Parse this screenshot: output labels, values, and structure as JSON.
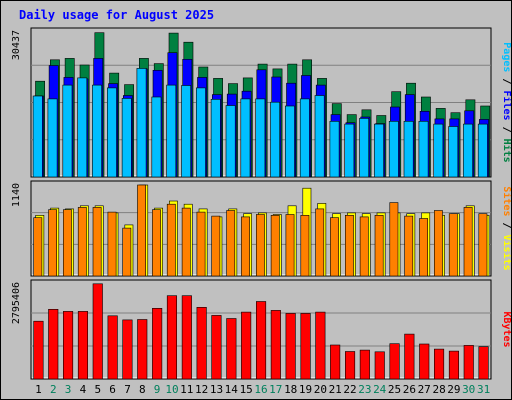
{
  "chart_data": {
    "type": "bar",
    "title": "Daily usage for August 2025",
    "x": [
      "1",
      "2",
      "3",
      "4",
      "5",
      "6",
      "7",
      "8",
      "9",
      "10",
      "11",
      "12",
      "13",
      "14",
      "15",
      "16",
      "17",
      "18",
      "19",
      "20",
      "21",
      "22",
      "23",
      "24",
      "25",
      "26",
      "27",
      "28",
      "29",
      "30",
      "31"
    ],
    "weekend_days": [
      "2",
      "3",
      "9",
      "10",
      "16",
      "17",
      "23",
      "24",
      "30",
      "31"
    ],
    "panels": [
      {
        "id": "hits_files_pages",
        "max_label": "30437",
        "ylim": [
          0,
          30437
        ],
        "series": [
          {
            "name": "Hits",
            "color": "#008040",
            "values": [
              20100,
              24600,
              24900,
              23500,
              30300,
              21800,
              19400,
              24900,
              23800,
              30200,
              28300,
              23100,
              20700,
              19600,
              20800,
              23700,
              22700,
              23700,
              24600,
              20700,
              15400,
              13100,
              14100,
              12900,
              17900,
              19700,
              16800,
              14400,
              13500,
              16200,
              14900
            ]
          },
          {
            "name": "Files",
            "color": "#0000ff",
            "values": [
              17000,
              23400,
              20900,
              20600,
              24900,
              19600,
              17100,
              22700,
              22400,
              26100,
              24700,
              20900,
              17300,
              17400,
              18000,
              22500,
              21000,
              19700,
              21300,
              19300,
              13100,
              11400,
              12600,
              11200,
              14700,
              17300,
              13800,
              12200,
              12200,
              13900,
              12100
            ]
          },
          {
            "name": "Pages",
            "color": "#00bfff",
            "values": [
              17000,
              16400,
              19300,
              20800,
              19300,
              18700,
              16500,
              22800,
              16800,
              19300,
              19200,
              18700,
              16300,
              15000,
              16400,
              16400,
              15700,
              14900,
              16400,
              17100,
              11700,
              11100,
              12300,
              11100,
              11700,
              11700,
              11700,
              11100,
              10600,
              11100,
              11100
            ]
          }
        ]
      },
      {
        "id": "visits_sites",
        "max_label": "1140",
        "ylim": [
          0,
          1140
        ],
        "series": [
          {
            "name": "Visits",
            "color": "#ffff00",
            "values": [
              760,
              850,
              840,
              880,
              880,
              790,
              640,
              1140,
              850,
              940,
              900,
              840,
              740,
              840,
              780,
              790,
              770,
              880,
              1100,
              910,
              780,
              790,
              780,
              790,
              790,
              780,
              790,
              760,
              780,
              880,
              760
            ]
          },
          {
            "name": "Sites",
            "color": "#ff8000",
            "values": [
              730,
              830,
              830,
              860,
              860,
              800,
              600,
              1140,
              830,
              900,
              850,
              800,
              750,
              820,
              740,
              770,
              760,
              770,
              760,
              840,
              730,
              760,
              740,
              760,
              920,
              750,
              720,
              820,
              780,
              860,
              780
            ]
          }
        ]
      },
      {
        "id": "kbytes",
        "max_label": "2795406",
        "ylim": [
          0,
          2795406
        ],
        "series": [
          {
            "name": "KBytes",
            "color": "#ff0000",
            "values": [
              1700000,
              2050000,
              1990000,
              1990000,
              2800000,
              1860000,
              1740000,
              1750000,
              2080000,
              2450000,
              2450000,
              2110000,
              1870000,
              1780000,
              1970000,
              2280000,
              2020000,
              1930000,
              1930000,
              1970000,
              1000000,
              810000,
              850000,
              800000,
              1040000,
              1320000,
              1030000,
              880000,
              820000,
              990000,
              950000
            ]
          }
        ]
      }
    ],
    "right_labels": [
      [
        {
          "text": "Pages",
          "color": "#00bfff"
        },
        {
          "text": " / ",
          "color": "#000000"
        },
        {
          "text": "Files",
          "color": "#0000ff"
        },
        {
          "text": " / ",
          "color": "#000000"
        },
        {
          "text": "Hits",
          "color": "#008040"
        }
      ],
      [
        {
          "text": "Sites",
          "color": "#ff8000"
        },
        {
          "text": " / ",
          "color": "#000000"
        },
        {
          "text": "Visits",
          "color": "#ffff00"
        }
      ],
      [
        {
          "text": "KBytes",
          "color": "#ff0000"
        }
      ]
    ],
    "grid": true,
    "colors": {
      "background": "#c0c0c0",
      "title": "#0000ff",
      "weekday_label": "#000000",
      "weekend_label": "#00805c",
      "gridline": "#808080"
    }
  }
}
